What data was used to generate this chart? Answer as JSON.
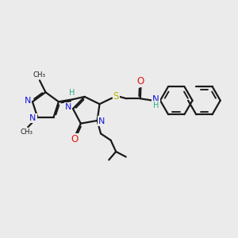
{
  "bg_color": "#ebebeb",
  "bond_color": "#1a1a1a",
  "bw": 1.6,
  "nc": "#1414e0",
  "oc": "#e61414",
  "sc": "#b8b800",
  "hc": "#2aaa8a",
  "cc": "#1a1a1a",
  "lfs": 7.0,
  "xlim": [
    0,
    10
  ],
  "ylim": [
    0,
    10
  ],
  "figsize": [
    3.0,
    3.0
  ],
  "dpi": 100
}
